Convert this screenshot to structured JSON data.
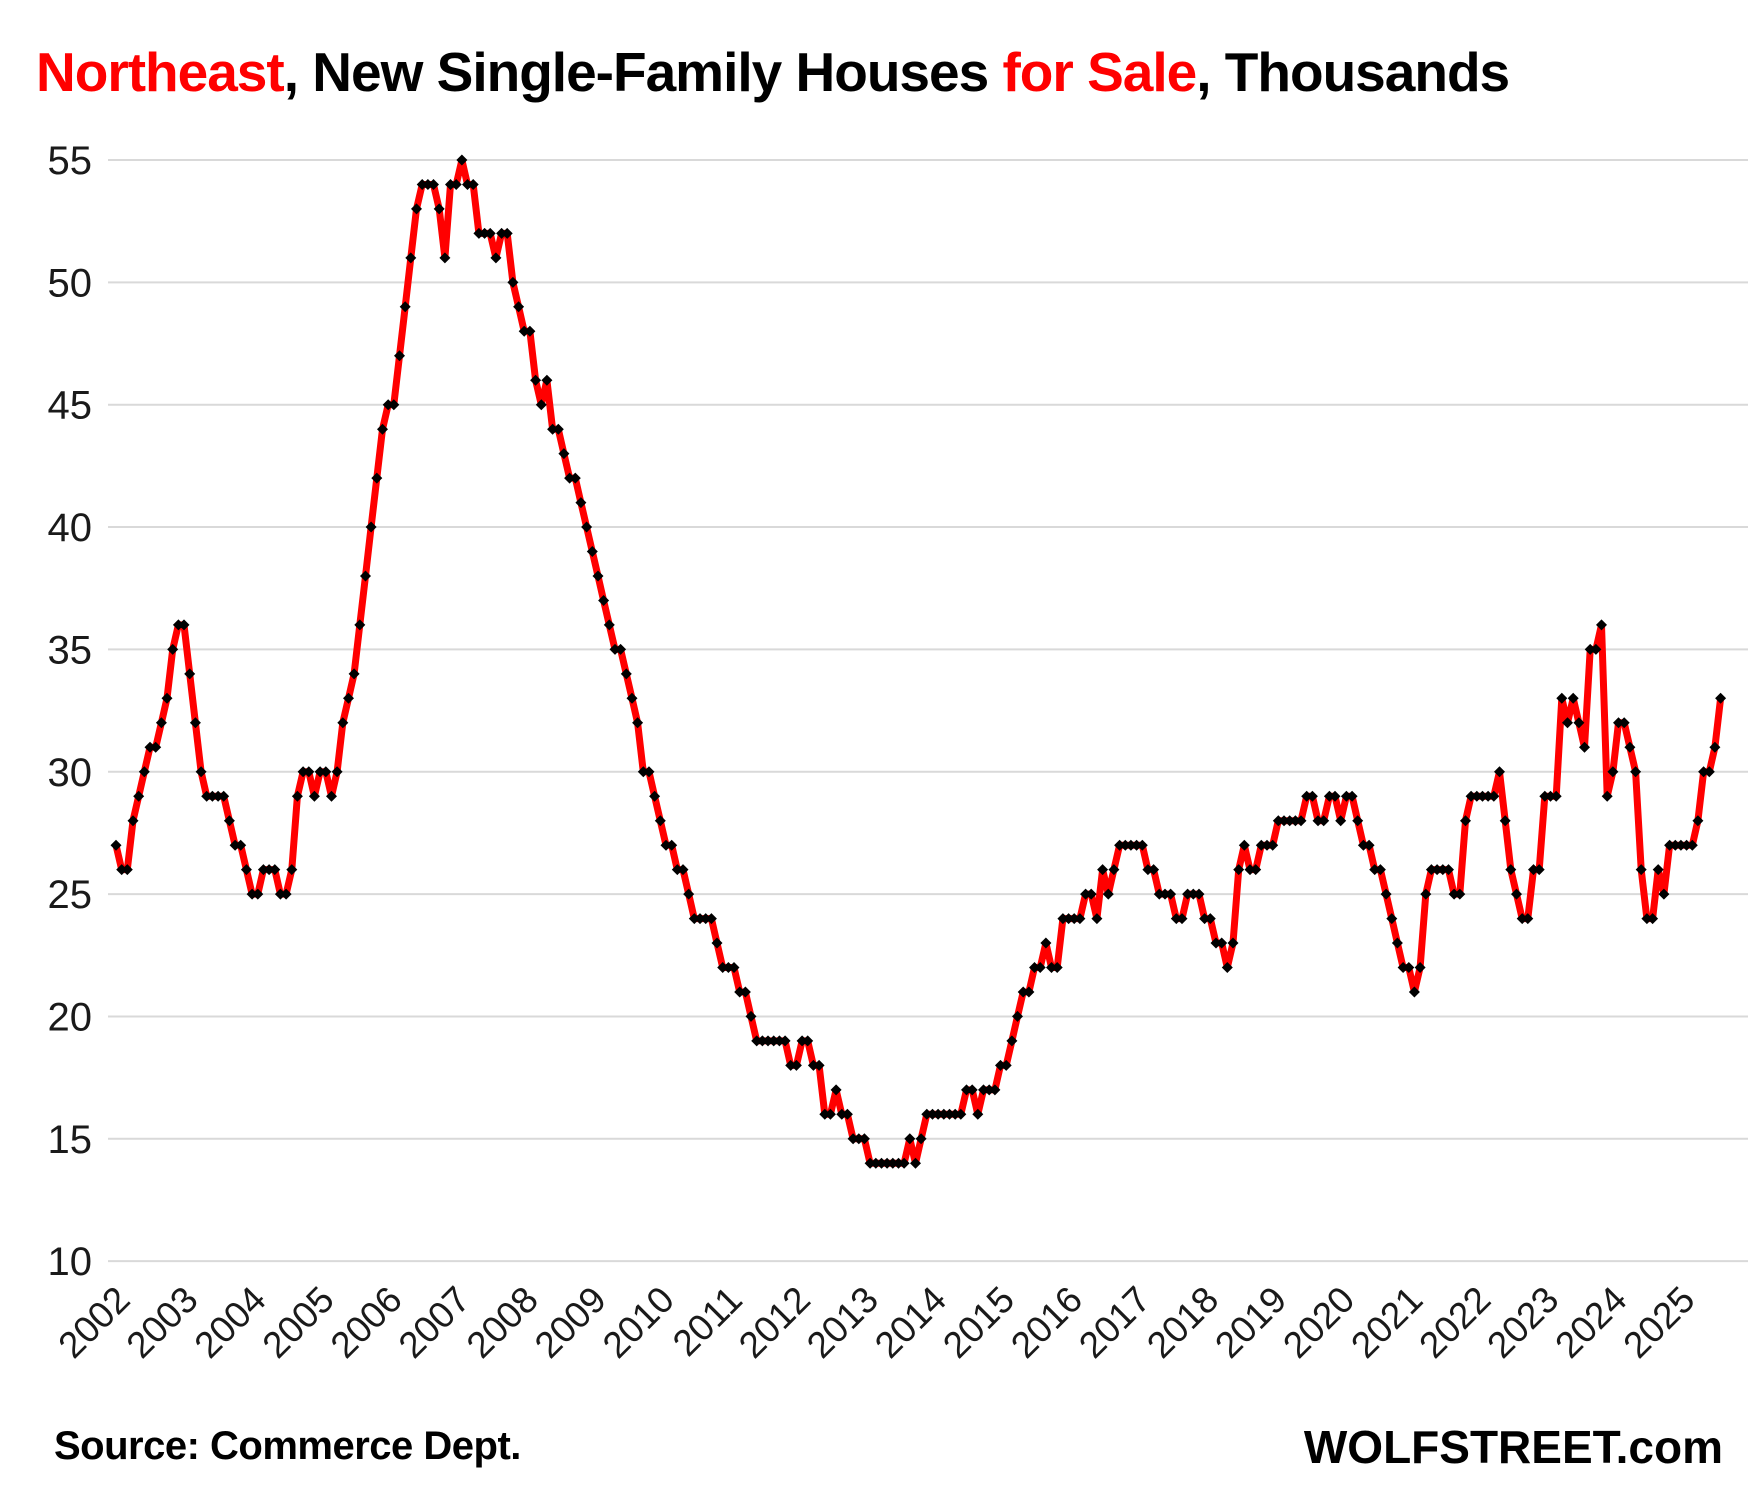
{
  "title": {
    "segments": [
      {
        "text": "Northeast",
        "color": "#FF0000"
      },
      {
        "text": ", New Single-Family Houses ",
        "color": "#000000"
      },
      {
        "text": "for Sale",
        "color": "#FF0000"
      },
      {
        "text": ", Thousands",
        "color": "#000000"
      }
    ]
  },
  "footer": {
    "source": "Source: Commerce Dept.",
    "watermark": "WOLFSTREET.com"
  },
  "chart_data": {
    "type": "line",
    "title": "Northeast, New Single-Family Houses for Sale, Thousands",
    "xlabel": "",
    "ylabel": "",
    "line_color": "#FF0000",
    "marker_color": "#000000",
    "marker_shape": "diamond",
    "grid_color": "#D9D9D9",
    "grid": "horizontal-only",
    "legend": "none",
    "ylim": [
      9,
      56
    ],
    "yticks": [
      10,
      15,
      20,
      25,
      30,
      35,
      40,
      45,
      50,
      55
    ],
    "xtick_years": [
      2002,
      2003,
      2004,
      2005,
      2006,
      2007,
      2008,
      2009,
      2010,
      2011,
      2012,
      2013,
      2014,
      2015,
      2016,
      2017,
      2018,
      2019,
      2020,
      2021,
      2022,
      2023,
      2024,
      2025
    ],
    "frequency": "monthly",
    "start_month": "2002-01",
    "end_month": "2025-08",
    "values": [
      27,
      26,
      26,
      28,
      29,
      30,
      31,
      31,
      32,
      33,
      35,
      36,
      36,
      34,
      32,
      30,
      29,
      29,
      29,
      29,
      28,
      27,
      27,
      26,
      25,
      25,
      26,
      26,
      26,
      25,
      25,
      26,
      29,
      30,
      30,
      29,
      30,
      30,
      29,
      30,
      32,
      33,
      34,
      36,
      38,
      40,
      42,
      44,
      45,
      45,
      47,
      49,
      51,
      53,
      54,
      54,
      54,
      53,
      51,
      54,
      54,
      55,
      54,
      54,
      52,
      52,
      52,
      51,
      52,
      52,
      50,
      49,
      48,
      48,
      46,
      45,
      46,
      44,
      44,
      43,
      42,
      42,
      41,
      40,
      39,
      38,
      37,
      36,
      35,
      35,
      34,
      33,
      32,
      30,
      30,
      29,
      28,
      27,
      27,
      26,
      26,
      25,
      24,
      24,
      24,
      24,
      23,
      22,
      22,
      22,
      21,
      21,
      20,
      19,
      19,
      19,
      19,
      19,
      19,
      18,
      18,
      19,
      19,
      18,
      18,
      16,
      16,
      17,
      16,
      16,
      15,
      15,
      15,
      14,
      14,
      14,
      14,
      14,
      14,
      14,
      15,
      14,
      15,
      16,
      16,
      16,
      16,
      16,
      16,
      16,
      17,
      17,
      16,
      17,
      17,
      17,
      18,
      18,
      19,
      20,
      21,
      21,
      22,
      22,
      23,
      22,
      22,
      24,
      24,
      24,
      24,
      25,
      25,
      24,
      26,
      25,
      26,
      27,
      27,
      27,
      27,
      27,
      26,
      26,
      25,
      25,
      25,
      24,
      24,
      25,
      25,
      25,
      24,
      24,
      23,
      23,
      22,
      23,
      26,
      27,
      26,
      26,
      27,
      27,
      27,
      28,
      28,
      28,
      28,
      28,
      29,
      29,
      28,
      28,
      29,
      29,
      28,
      29,
      29,
      28,
      27,
      27,
      26,
      26,
      25,
      24,
      23,
      22,
      22,
      21,
      22,
      25,
      26,
      26,
      26,
      26,
      25,
      25,
      28,
      29,
      29,
      29,
      29,
      29,
      30,
      28,
      26,
      25,
      24,
      24,
      26,
      26,
      29,
      29,
      29,
      33,
      32,
      33,
      32,
      31,
      35,
      35,
      36,
      29,
      30,
      32,
      32,
      31,
      30,
      26,
      24,
      24,
      26,
      25,
      27,
      27,
      27,
      27,
      27,
      28,
      30,
      30,
      31,
      33
    ]
  }
}
